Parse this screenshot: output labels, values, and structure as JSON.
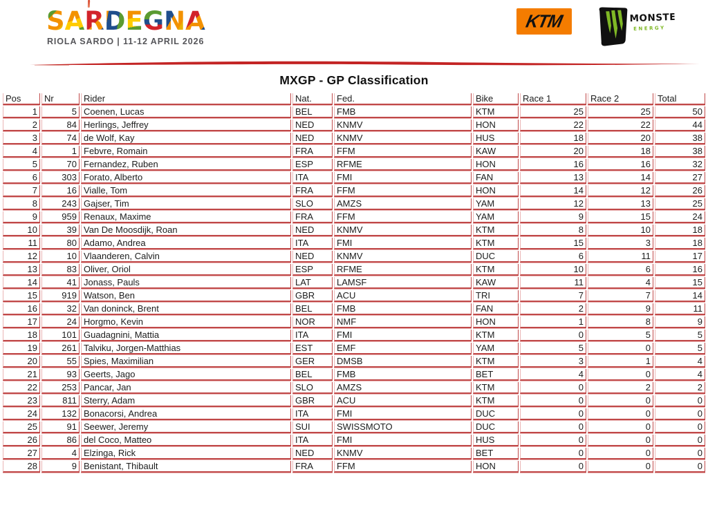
{
  "branding": {
    "event_title": "SARDEGNA",
    "event_subtitle": "RIOLA SARDO | 11-12 APRIL 2026",
    "ktm_logo_text": "KTM",
    "monster_logo_text": "MONSTER",
    "monster_logo_subtext": "ENERGY"
  },
  "page": {
    "title": "MXGP - GP Classification"
  },
  "colors": {
    "table_border_dark": "#c04848",
    "table_border_light": "#eab4b4",
    "brush_red": "#c32424",
    "ktm_orange": "#f47c00",
    "monster_green": "#7fb825"
  },
  "table": {
    "columns": [
      "Pos",
      "Nr",
      "Rider",
      "Nat.",
      "Fed.",
      "Bike",
      "Race 1",
      "Race 2",
      "Total"
    ],
    "column_keys": [
      "pos",
      "nr",
      "rider",
      "nat",
      "fed",
      "bike",
      "race1",
      "race2",
      "total"
    ],
    "rows": [
      [
        "1",
        "5",
        "Coenen, Lucas",
        "BEL",
        "FMB",
        "KTM",
        "25",
        "25",
        "50"
      ],
      [
        "2",
        "84",
        "Herlings, Jeffrey",
        "NED",
        "KNMV",
        "HON",
        "22",
        "22",
        "44"
      ],
      [
        "3",
        "74",
        "de Wolf, Kay",
        "NED",
        "KNMV",
        "HUS",
        "18",
        "20",
        "38"
      ],
      [
        "4",
        "1",
        "Febvre, Romain",
        "FRA",
        "FFM",
        "KAW",
        "20",
        "18",
        "38"
      ],
      [
        "5",
        "70",
        "Fernandez, Ruben",
        "ESP",
        "RFME",
        "HON",
        "16",
        "16",
        "32"
      ],
      [
        "6",
        "303",
        "Forato, Alberto",
        "ITA",
        "FMI",
        "FAN",
        "13",
        "14",
        "27"
      ],
      [
        "7",
        "16",
        "Vialle, Tom",
        "FRA",
        "FFM",
        "HON",
        "14",
        "12",
        "26"
      ],
      [
        "8",
        "243",
        "Gajser, Tim",
        "SLO",
        "AMZS",
        "YAM",
        "12",
        "13",
        "25"
      ],
      [
        "9",
        "959",
        "Renaux, Maxime",
        "FRA",
        "FFM",
        "YAM",
        "9",
        "15",
        "24"
      ],
      [
        "10",
        "39",
        "Van De Moosdijk, Roan",
        "NED",
        "KNMV",
        "KTM",
        "8",
        "10",
        "18"
      ],
      [
        "11",
        "80",
        "Adamo, Andrea",
        "ITA",
        "FMI",
        "KTM",
        "15",
        "3",
        "18"
      ],
      [
        "12",
        "10",
        "Vlaanderen, Calvin",
        "NED",
        "KNMV",
        "DUC",
        "6",
        "11",
        "17"
      ],
      [
        "13",
        "83",
        "Oliver, Oriol",
        "ESP",
        "RFME",
        "KTM",
        "10",
        "6",
        "16"
      ],
      [
        "14",
        "41",
        "Jonass, Pauls",
        "LAT",
        "LAMSF",
        "KAW",
        "11",
        "4",
        "15"
      ],
      [
        "15",
        "919",
        "Watson, Ben",
        "GBR",
        "ACU",
        "TRI",
        "7",
        "7",
        "14"
      ],
      [
        "16",
        "32",
        "Van doninck, Brent",
        "BEL",
        "FMB",
        "FAN",
        "2",
        "9",
        "11"
      ],
      [
        "17",
        "24",
        "Horgmo, Kevin",
        "NOR",
        "NMF",
        "HON",
        "1",
        "8",
        "9"
      ],
      [
        "18",
        "101",
        "Guadagnini, Mattia",
        "ITA",
        "FMI",
        "KTM",
        "0",
        "5",
        "5"
      ],
      [
        "19",
        "261",
        "Talviku, Jorgen-Matthias",
        "EST",
        "EMF",
        "YAM",
        "5",
        "0",
        "5"
      ],
      [
        "20",
        "55",
        "Spies, Maximilian",
        "GER",
        "DMSB",
        "KTM",
        "3",
        "1",
        "4"
      ],
      [
        "21",
        "93",
        "Geerts, Jago",
        "BEL",
        "FMB",
        "BET",
        "4",
        "0",
        "4"
      ],
      [
        "22",
        "253",
        "Pancar, Jan",
        "SLO",
        "AMZS",
        "KTM",
        "0",
        "2",
        "2"
      ],
      [
        "23",
        "811",
        "Sterry, Adam",
        "GBR",
        "ACU",
        "KTM",
        "0",
        "0",
        "0"
      ],
      [
        "24",
        "132",
        "Bonacorsi, Andrea",
        "ITA",
        "FMI",
        "DUC",
        "0",
        "0",
        "0"
      ],
      [
        "25",
        "91",
        "Seewer, Jeremy",
        "SUI",
        "SWISSMOTO",
        "DUC",
        "0",
        "0",
        "0"
      ],
      [
        "26",
        "86",
        "del Coco, Matteo",
        "ITA",
        "FMI",
        "HUS",
        "0",
        "0",
        "0"
      ],
      [
        "27",
        "4",
        "Elzinga, Rick",
        "NED",
        "KNMV",
        "BET",
        "0",
        "0",
        "0"
      ],
      [
        "28",
        "9",
        "Benistant, Thibault",
        "FRA",
        "FFM",
        "HON",
        "0",
        "0",
        "0"
      ]
    ]
  }
}
